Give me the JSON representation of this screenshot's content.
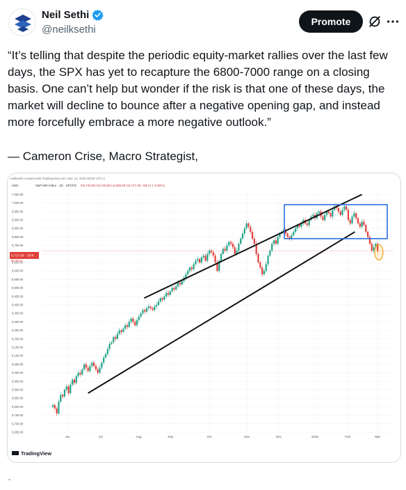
{
  "author": {
    "name": "Neil Sethi",
    "handle": "@neilksethi",
    "verified_color": "#1d9bf0"
  },
  "actions": {
    "promote_label": "Promote",
    "grok_icon": "grok-slash-icon",
    "more_icon": "more-dots-icon"
  },
  "tweet": {
    "text": "“It’s telling that despite the periodic equity-market rallies over the last few days, the SPX has yet to recapture the 6800-7000 range on a closing basis. One can’t help but wonder if the risk is that one of these days, the market will decline to bounce after a negative opening gap, and instead more forcefully embrace a more negative outlook.”",
    "attribution": "— Cameron Crise, Macro Strategist,"
  },
  "chart": {
    "header_left": "neilksethi created with TradingView.com, Mar 12, 2026 09:50 UTC-4",
    "currency": "USD",
    "symbol_line": "S&P 500 Index · 1D · SPCFD",
    "ohlc": "O6,740.80 H6,745.80 L6,698.90 C6,717.58 −58.21 (−0.86%)",
    "price_label": "6,717.58",
    "price_symbol": "SPX",
    "price_sub": "05:19:11",
    "brand": "TradingView",
    "up_color": "#22a38a",
    "down_color": "#e0403a"
  },
  "chart_data": {
    "type": "candlestick",
    "title": "S&P 500 Index · 1D · SPCFD",
    "x": [
      "Jun",
      "Jul",
      "Aug",
      "Sep",
      "Oct",
      "Nov",
      "Dec",
      "2026",
      "Feb",
      "Mar"
    ],
    "y_ticks": [
      "7,050.00",
      "7,000.00",
      "6,950.00",
      "6,900.00",
      "6,850.00",
      "6,800.00",
      "6,750.00",
      "6,700.00",
      "6,650.00",
      "6,600.00",
      "6,550.00",
      "6,500.00",
      "6,450.00",
      "6,400.00",
      "6,350.00",
      "6,300.00",
      "6,250.00",
      "6,200.00",
      "6,150.00",
      "6,100.00",
      "6,050.00",
      "6,000.00",
      "5,950.00",
      "5,900.00",
      "5,850.00",
      "5,800.00",
      "5,750.00",
      "5,700.00",
      "5,650.00"
    ],
    "ylim": [
      5650,
      7060
    ],
    "last_close": 6717.58,
    "series_close": [
      5810,
      5790,
      5760,
      5830,
      5870,
      5860,
      5900,
      5920,
      5880,
      5930,
      5960,
      5940,
      5980,
      6000,
      5990,
      6020,
      6050,
      6030,
      6010,
      6040,
      6060,
      6040,
      6020,
      6000,
      6030,
      6060,
      6090,
      6110,
      6140,
      6170,
      6180,
      6210,
      6200,
      6230,
      6250,
      6240,
      6260,
      6280,
      6270,
      6300,
      6320,
      6300,
      6280,
      6310,
      6330,
      6350,
      6370,
      6360,
      6380,
      6390,
      6380,
      6370,
      6390,
      6400,
      6420,
      6440,
      6430,
      6450,
      6470,
      6460,
      6480,
      6500,
      6490,
      6510,
      6530,
      6520,
      6540,
      6560,
      6580,
      6600,
      6620,
      6610,
      6640,
      6660,
      6670,
      6650,
      6680,
      6690,
      6660,
      6700,
      6720,
      6710,
      6690,
      6650,
      6600,
      6660,
      6700,
      6730,
      6720,
      6750,
      6770,
      6760,
      6740,
      6700,
      6720,
      6760,
      6790,
      6820,
      6850,
      6880,
      6860,
      6830,
      6790,
      6760,
      6700,
      6650,
      6620,
      6580,
      6600,
      6640,
      6690,
      6720,
      6760,
      6780,
      6760,
      6800,
      6820,
      6830,
      6840,
      6820,
      6800,
      6790,
      6810,
      6830,
      6850,
      6870,
      6860,
      6880,
      6900,
      6880,
      6870,
      6900,
      6920,
      6930,
      6910,
      6940,
      6950,
      6920,
      6900,
      6930,
      6950,
      6940,
      6920,
      6960,
      6980,
      6970,
      6950,
      6930,
      6960,
      6980,
      6960,
      6900,
      6880,
      6920,
      6940,
      6910,
      6880,
      6860,
      6890,
      6870,
      6830,
      6800,
      6760,
      6720,
      6740,
      6760,
      6717.58
    ],
    "annotations": {
      "channel_upper": [
        [
          0.29,
          6440
        ],
        [
          0.91,
          7050
        ]
      ],
      "channel_lower": [
        [
          0.13,
          5880
        ],
        [
          0.89,
          6830
        ]
      ],
      "range_box": [
        6790,
        6990
      ],
      "highlight": "last candles circled"
    }
  }
}
